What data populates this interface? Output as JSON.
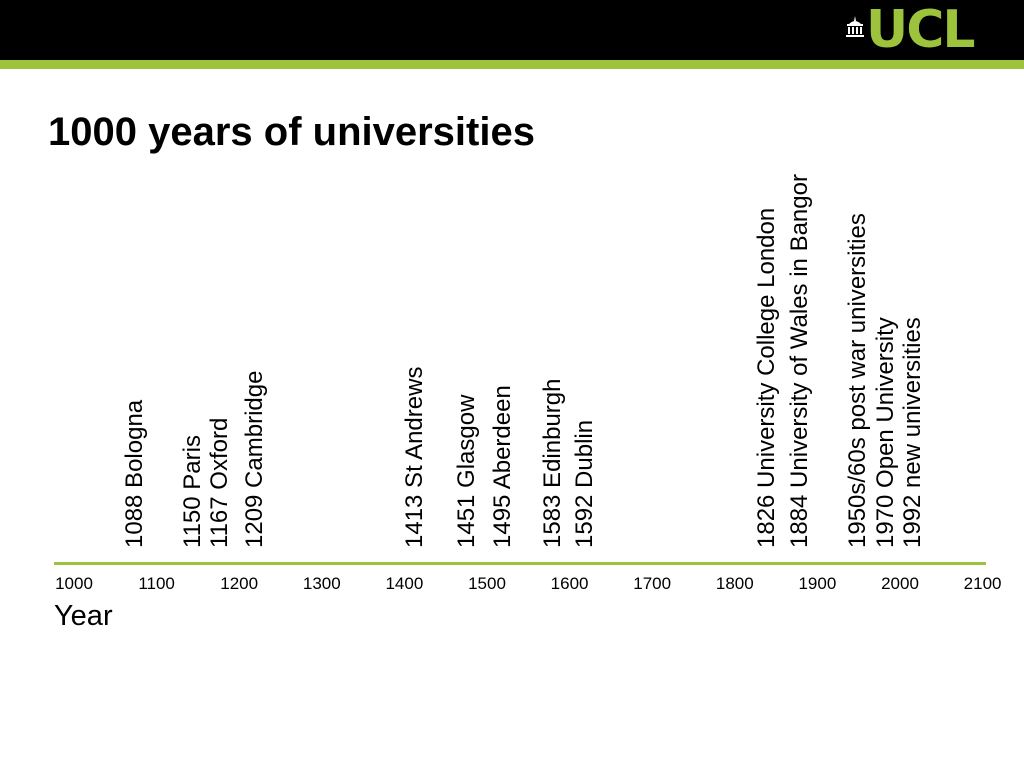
{
  "header": {
    "logo_text": "UCL",
    "bar_color": "#000000",
    "accent_color": "#9cc33b"
  },
  "title": "1000 years of universities",
  "timeline": {
    "axis_title": "Year",
    "axis_color": "#9cc33b",
    "ticks": [
      "1000",
      "1100",
      "1200",
      "1300",
      "1400",
      "1500",
      "1600",
      "1700",
      "1800",
      "1900",
      "2000",
      "2100"
    ],
    "events": [
      {
        "year": 1088,
        "label": "1088 Bologna"
      },
      {
        "year": 1150,
        "label": "1150 Paris"
      },
      {
        "year": 1167,
        "label": "1167  Oxford"
      },
      {
        "year": 1209,
        "label": "1209 Cambridge"
      },
      {
        "year": 1413,
        "label": "1413 St Andrews"
      },
      {
        "year": 1451,
        "label": "1451 Glasgow"
      },
      {
        "year": 1495,
        "label": "1495 Aberdeen"
      },
      {
        "year": 1583,
        "label": "1583 Edinburgh"
      },
      {
        "year": 1592,
        "label": "1592 Dublin"
      },
      {
        "year": 1826,
        "label": "1826 University College London"
      },
      {
        "year": 1884,
        "label": "1884 University of Wales in Bangor"
      },
      {
        "year": 1950,
        "label": "1950s/60s post war universities"
      },
      {
        "year": 1970,
        "label": "1970 Open University"
      },
      {
        "year": 1992,
        "label": "1992 new universities"
      }
    ]
  }
}
